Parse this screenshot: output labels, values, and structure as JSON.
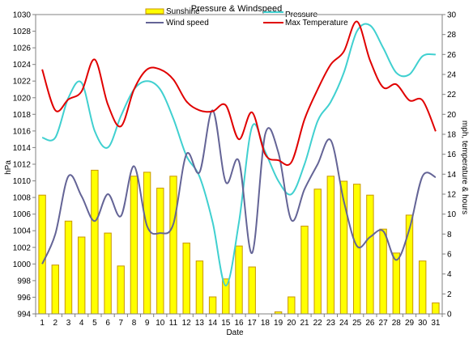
{
  "chart_data": {
    "type": "bar",
    "title": "Pressure & Windspeed",
    "xlabel": "Date",
    "ylabel_left": "hPa",
    "ylabel_right": "mph, temperature & hours",
    "x": [
      1,
      2,
      3,
      4,
      5,
      6,
      7,
      8,
      9,
      10,
      11,
      12,
      13,
      14,
      15,
      16,
      17,
      18,
      19,
      20,
      21,
      22,
      23,
      24,
      25,
      26,
      27,
      28,
      29,
      30,
      31
    ],
    "ylim_left": [
      994,
      1030
    ],
    "yticks_left": [
      994,
      996,
      998,
      1000,
      1002,
      1004,
      1006,
      1008,
      1010,
      1012,
      1014,
      1016,
      1018,
      1020,
      1022,
      1024,
      1026,
      1028,
      1030
    ],
    "ylim_right": [
      0,
      30
    ],
    "yticks_right": [
      0,
      2,
      4,
      6,
      8,
      10,
      12,
      14,
      16,
      18,
      20,
      22,
      24,
      26,
      28,
      30
    ],
    "grid": false,
    "legend_position": "top",
    "series": [
      {
        "name": "Sunshine",
        "kind": "bar",
        "axis": "right",
        "color": "#ffff00",
        "edge_color": "#c89600",
        "values": [
          11.9,
          4.9,
          9.3,
          7.7,
          14.4,
          8.1,
          4.8,
          13.8,
          14.2,
          12.6,
          13.8,
          7.1,
          5.3,
          1.7,
          3.5,
          6.8,
          4.7,
          0,
          0.2,
          1.7,
          8.8,
          12.5,
          13.8,
          13.3,
          13.0,
          11.9,
          8.5,
          6.1,
          9.9,
          5.3,
          1.1
        ]
      },
      {
        "name": "Pressure",
        "kind": "line",
        "axis": "left",
        "color": "#40d0d0",
        "values": [
          1015.2,
          1015.2,
          1020,
          1021.8,
          1016,
          1014,
          1017.8,
          1021,
          1022,
          1021,
          1017.5,
          1013,
          1010.5,
          1005,
          997.4,
          1005,
          1016.5,
          1013.5,
          1010,
          1008.4,
          1012,
          1017.2,
          1019.5,
          1023,
          1028,
          1028.7,
          1026,
          1023,
          1022.8,
          1025,
          1025.2
        ]
      },
      {
        "name": "Wind speed",
        "kind": "line",
        "axis": "right",
        "color": "#646496",
        "values": [
          5.0,
          8.0,
          13.8,
          11.8,
          9.3,
          12.0,
          9.8,
          14.8,
          8.8,
          8.1,
          9.0,
          16.0,
          14.2,
          20.4,
          13.2,
          15.3,
          6.1,
          18.0,
          16.2,
          9.4,
          12.5,
          15.0,
          17.4,
          11.3,
          6.8,
          7.7,
          8.3,
          5.4,
          8.5,
          13.8,
          13.7
        ]
      },
      {
        "name": "Max Temperature",
        "kind": "line",
        "axis": "right",
        "color": "#e00000",
        "values": [
          24.5,
          20.4,
          21.5,
          22.3,
          25.5,
          21.0,
          18.8,
          22.5,
          24.5,
          24.5,
          23.5,
          21.3,
          20.4,
          20.3,
          20.9,
          17.5,
          20.2,
          16.0,
          15.4,
          15.2,
          19.5,
          22.5,
          25.0,
          26.3,
          29.3,
          25.4,
          22.7,
          23.0,
          21.4,
          21.4,
          18.3
        ]
      }
    ]
  }
}
